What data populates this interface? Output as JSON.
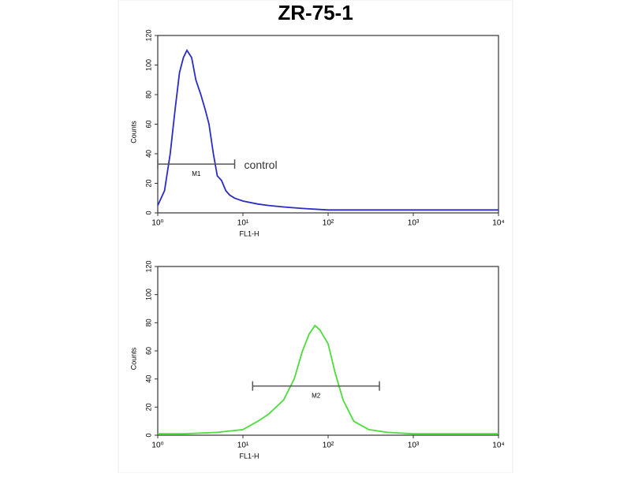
{
  "chart_data": [
    {
      "type": "line",
      "title": "ZR-75-1",
      "xlabel": "FL1-H",
      "ylabel": "Counts",
      "log_x": true,
      "xlim": [
        1,
        10000
      ],
      "ylim": [
        0,
        120
      ],
      "xticks": [
        {
          "value": 1,
          "label": "10⁰"
        },
        {
          "value": 10,
          "label": "10¹"
        },
        {
          "value": 100,
          "label": "10²"
        },
        {
          "value": 1000,
          "label": "10³"
        },
        {
          "value": 10000,
          "label": "10⁴"
        }
      ],
      "yticks": [
        0,
        20,
        40,
        60,
        80,
        100,
        120
      ],
      "series": [
        {
          "color": "#2b2bc8",
          "x": [
            1,
            1.2,
            1.4,
            1.6,
            1.8,
            2,
            2.2,
            2.5,
            2.8,
            3.2,
            3.6,
            4,
            4.5,
            5,
            5.6,
            6.3,
            7,
            8,
            10,
            15,
            20,
            30,
            50,
            100,
            200,
            500,
            1000,
            2000,
            5000,
            10000
          ],
          "values": [
            5,
            15,
            40,
            70,
            95,
            105,
            110,
            105,
            90,
            80,
            70,
            60,
            40,
            25,
            22,
            15,
            12,
            10,
            8,
            6,
            5,
            4,
            3,
            2,
            2,
            2,
            2,
            2,
            2,
            2
          ]
        }
      ],
      "gates": [
        {
          "label": "M1",
          "x": [
            1,
            8
          ],
          "y": 33
        }
      ],
      "annotation": "control"
    },
    {
      "type": "line",
      "xlabel": "FL1-H",
      "ylabel": "Counts",
      "log_x": true,
      "xlim": [
        1,
        10000
      ],
      "ylim": [
        0,
        120
      ],
      "xticks": [
        {
          "value": 1,
          "label": "10⁰"
        },
        {
          "value": 10,
          "label": "10¹"
        },
        {
          "value": 100,
          "label": "10²"
        },
        {
          "value": 1000,
          "label": "10³"
        },
        {
          "value": 10000,
          "label": "10⁴"
        }
      ],
      "yticks": [
        0,
        20,
        40,
        60,
        80,
        100,
        120
      ],
      "series": [
        {
          "color": "#4ddc3c",
          "x": [
            1,
            2,
            5,
            10,
            15,
            20,
            30,
            40,
            50,
            60,
            70,
            80,
            100,
            120,
            150,
            200,
            300,
            500,
            1000,
            10000
          ],
          "values": [
            1,
            1,
            2,
            4,
            10,
            15,
            25,
            40,
            60,
            72,
            78,
            75,
            65,
            45,
            25,
            10,
            4,
            2,
            1,
            1
          ]
        }
      ],
      "gates": [
        {
          "label": "M2",
          "x": [
            13,
            400
          ],
          "y": 35
        }
      ]
    }
  ]
}
